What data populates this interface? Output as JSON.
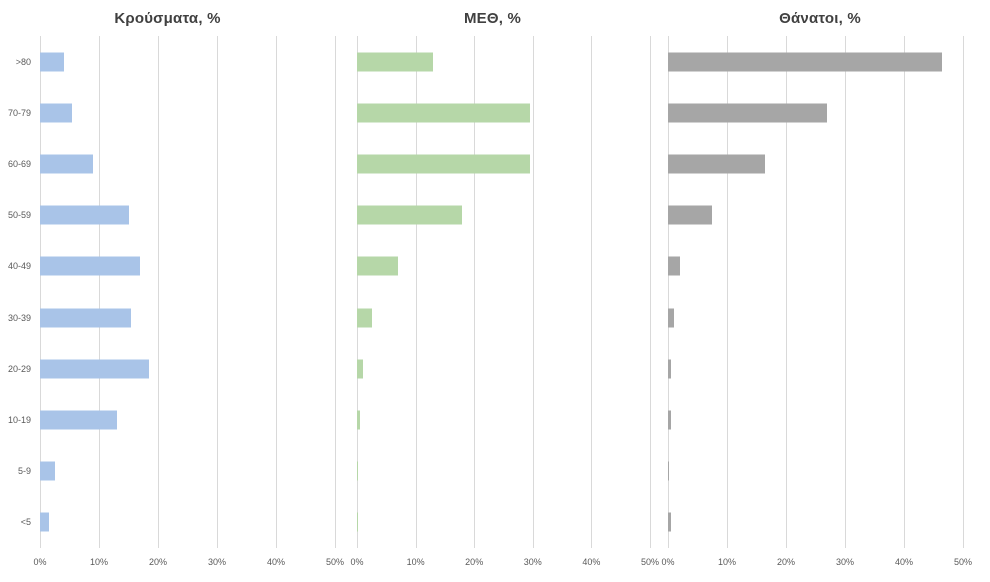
{
  "chart_data": [
    {
      "type": "bar",
      "orientation": "horizontal",
      "title": "Κρούσματα, %",
      "categories": [
        ">80",
        "70-79",
        "60-69",
        "50-59",
        "40-49",
        "30-39",
        "20-29",
        "10-19",
        "5-9",
        "<5"
      ],
      "values": [
        4,
        5.5,
        9,
        15,
        17,
        15.5,
        18.5,
        13,
        2.5,
        1.5
      ],
      "color": "#a9c4e8",
      "xlim": [
        0,
        50
      ],
      "x_ticks": [
        "0%",
        "10%",
        "20%",
        "30%",
        "40%",
        "50%"
      ],
      "xlabel": "",
      "ylabel": "",
      "grid": true,
      "legend": "none",
      "show_category_labels": true
    },
    {
      "type": "bar",
      "orientation": "horizontal",
      "title": "ΜΕΘ, %",
      "categories": [
        ">80",
        "70-79",
        "60-69",
        "50-59",
        "40-49",
        "30-39",
        "20-29",
        "10-19",
        "5-9",
        "<5"
      ],
      "values": [
        13,
        29.5,
        29.5,
        18,
        7,
        2.5,
        1,
        0.5,
        0.2,
        0.2
      ],
      "color": "#b6d7a8",
      "xlim": [
        0,
        50
      ],
      "x_ticks": [
        "0%",
        "10%",
        "20%",
        "30%",
        "40%",
        "50%"
      ],
      "xlabel": "",
      "ylabel": "",
      "grid": true,
      "legend": "none",
      "show_category_labels": false
    },
    {
      "type": "bar",
      "orientation": "horizontal",
      "title": "Θάνατοι, %",
      "categories": [
        ">80",
        "70-79",
        "60-69",
        "50-59",
        "40-49",
        "30-39",
        "20-29",
        "10-19",
        "5-9",
        "<5"
      ],
      "values": [
        46.5,
        27,
        16.5,
        7.5,
        2,
        1,
        0.5,
        0.5,
        0.1,
        0.5
      ],
      "color": "#a6a6a6",
      "xlim": [
        0,
        50
      ],
      "x_ticks": [
        "0%",
        "10%",
        "20%",
        "30%",
        "40%",
        "50%"
      ],
      "xlabel": "",
      "ylabel": "",
      "grid": true,
      "legend": "none",
      "show_category_labels": false
    }
  ]
}
